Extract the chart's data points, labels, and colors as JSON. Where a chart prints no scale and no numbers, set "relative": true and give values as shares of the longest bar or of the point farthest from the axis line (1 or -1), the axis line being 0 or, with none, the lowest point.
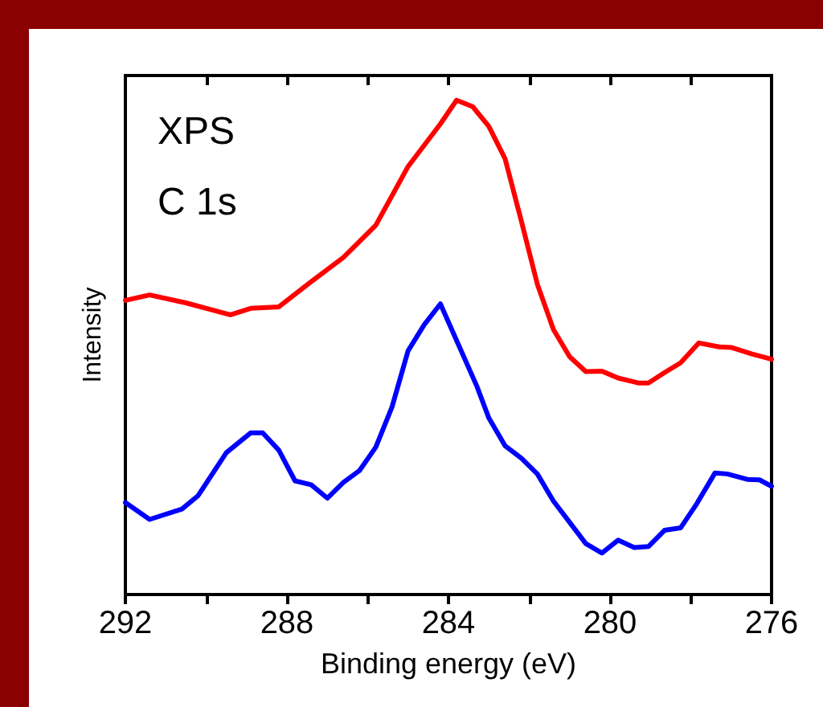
{
  "chart_data": {
    "type": "line",
    "xlabel": "Binding energy (eV)",
    "ylabel": "Intensity",
    "relative": true,
    "grid": false,
    "tick_labels": "x",
    "marker": "none",
    "line_style": "solid",
    "annotations": [
      "XPS",
      "C 1s"
    ],
    "xlim": [
      292,
      276
    ],
    "xticks": [
      292,
      {
        "value": 290,
        "label": null
      },
      288,
      {
        "value": 286,
        "label": null
      },
      284,
      {
        "value": 282,
        "label": null
      },
      280,
      {
        "value": 278,
        "label": null
      },
      276
    ],
    "series": [
      {
        "color": "#ff0000",
        "x": [
          292.0,
          291.4,
          290.5,
          289.4,
          288.9,
          288.2,
          287.4,
          286.6,
          285.8,
          285.0,
          284.2,
          283.8,
          283.4,
          283.0,
          282.6,
          282.2,
          281.8,
          281.4,
          281.0,
          280.6,
          280.2,
          279.8,
          279.3,
          279.05,
          278.65,
          278.25,
          277.8,
          277.3,
          277.0,
          276.5,
          276.0
        ],
        "values": [
          0.595,
          0.606,
          0.59,
          0.566,
          0.579,
          0.582,
          0.633,
          0.682,
          0.747,
          0.866,
          0.952,
          1,
          0.987,
          0.947,
          0.882,
          0.757,
          0.628,
          0.536,
          0.481,
          0.451,
          0.452,
          0.438,
          0.428,
          0.428,
          0.449,
          0.469,
          0.509,
          0.501,
          0.5,
          0.487,
          0.476
        ]
      },
      {
        "color": "#0000ff",
        "x": [
          292.0,
          291.4,
          290.6,
          290.2,
          289.5,
          288.9,
          288.6,
          288.2,
          287.8,
          287.4,
          287.0,
          286.6,
          286.2,
          285.8,
          285.4,
          285.0,
          284.6,
          284.2,
          283.3,
          283.0,
          282.6,
          282.2,
          281.8,
          281.4,
          281.0,
          280.6,
          280.2,
          279.8,
          279.4,
          279.05,
          278.65,
          278.25,
          277.85,
          277.4,
          277.1,
          276.6,
          276.3,
          276.0
        ],
        "values": [
          0.186,
          0.152,
          0.173,
          0.2,
          0.287,
          0.327,
          0.327,
          0.292,
          0.23,
          0.222,
          0.195,
          0.227,
          0.251,
          0.298,
          0.379,
          0.493,
          0.546,
          0.588,
          0.422,
          0.357,
          0.301,
          0.276,
          0.244,
          0.189,
          0.146,
          0.103,
          0.084,
          0.11,
          0.095,
          0.097,
          0.13,
          0.135,
          0.184,
          0.246,
          0.244,
          0.233,
          0.232,
          0.219
        ]
      }
    ]
  }
}
